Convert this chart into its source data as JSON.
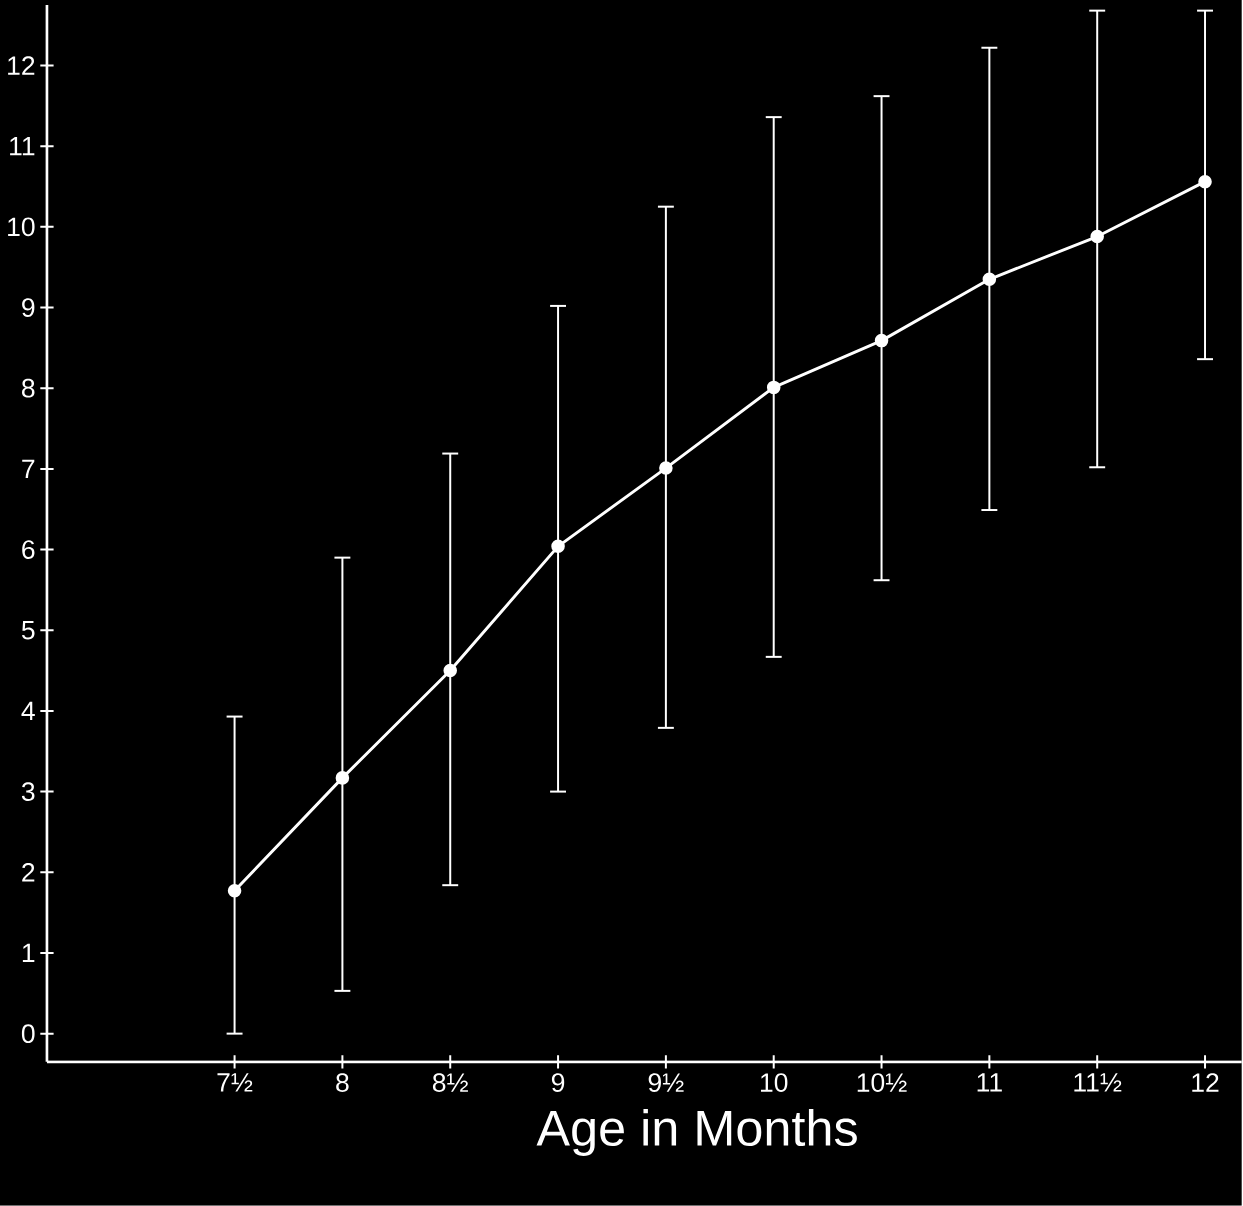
{
  "chart_data": {
    "type": "line",
    "xlabel": "Age in Months",
    "x": [
      7.5,
      8,
      8.5,
      9,
      9.5,
      10,
      10.5,
      11,
      11.5,
      12
    ],
    "values": [
      1.77,
      3.17,
      4.5,
      6.04,
      7.01,
      8.01,
      8.59,
      9.35,
      9.88,
      10.56
    ],
    "errors": [
      [
        0,
        3.93
      ],
      [
        0.53,
        5.9
      ],
      [
        1.84,
        7.19
      ],
      [
        3.0,
        9.02
      ],
      [
        3.79,
        10.25
      ],
      [
        4.67,
        11.36
      ],
      [
        5.62,
        11.62
      ],
      [
        6.49,
        12.22
      ],
      [
        7.02,
        12.68
      ],
      [
        8.36,
        12.68
      ]
    ],
    "color": "#ffffff",
    "marker": "circle",
    "line_style": "solid",
    "grid": false,
    "xlim": [
      6.63,
      12.17
    ],
    "ylim": [
      -0.35,
      12.75
    ],
    "xticks": [
      {
        "value": 7.5,
        "label": "7½"
      },
      8,
      {
        "value": 8.5,
        "label": "8½"
      },
      9,
      {
        "value": 9.5,
        "label": "9½"
      },
      10,
      {
        "value": 10.5,
        "label": "10½"
      },
      11,
      {
        "value": 11.5,
        "label": "11½"
      },
      12
    ],
    "yticks": [
      0,
      1,
      2,
      3,
      4,
      5,
      6,
      7,
      8,
      9,
      10,
      11,
      12
    ]
  }
}
